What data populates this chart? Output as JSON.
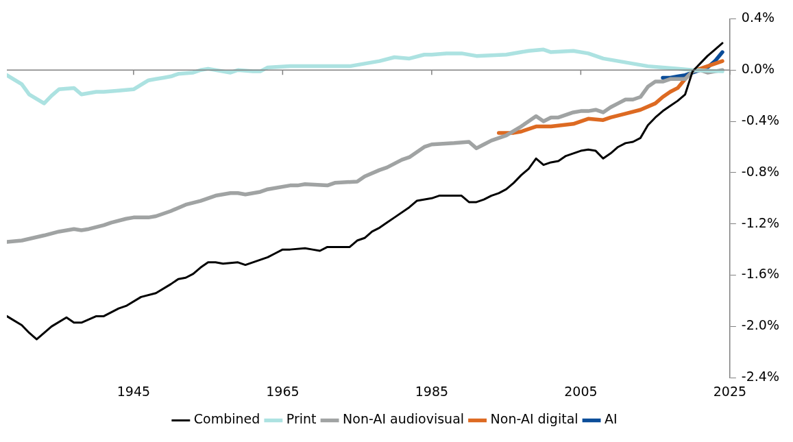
{
  "chart_data": {
    "type": "line",
    "xlim": [
      1928,
      2025
    ],
    "xticks": [
      1945,
      1965,
      1985,
      2005,
      2025
    ],
    "ylim": [
      -2.4,
      0.4
    ],
    "yticks": [
      {
        "value": 0.4,
        "label": "0.4%"
      },
      {
        "value": 0,
        "label": "0.0%"
      },
      {
        "value": -0.4,
        "label": "-0.4%"
      },
      {
        "value": -0.8,
        "label": "-0.8%"
      },
      {
        "value": -1.2,
        "label": "-1.2%"
      },
      {
        "value": -1.6,
        "label": "-1.6%"
      },
      {
        "value": -2.0,
        "label": "-2.0%"
      },
      {
        "value": -2.4,
        "label": "-2.4%"
      }
    ],
    "legend": "bottom",
    "marker": "none",
    "line_style": "solid",
    "series": [
      {
        "name": "Combined",
        "color": "#000000",
        "x": [
          1928,
          1930,
          1931,
          1932,
          1934,
          1936,
          1937,
          1938,
          1940,
          1941,
          1943,
          1944,
          1946,
          1948,
          1950,
          1951,
          1952,
          1953,
          1954,
          1955,
          1956,
          1957,
          1959,
          1960,
          1961,
          1962,
          1963,
          1964,
          1965,
          1966,
          1968,
          1969,
          1970,
          1971,
          1972,
          1973,
          1974,
          1975,
          1976,
          1977,
          1978,
          1979,
          1980,
          1982,
          1983,
          1985,
          1986,
          1987,
          1988,
          1989,
          1990,
          1991,
          1992,
          1993,
          1994,
          1995,
          1996,
          1997,
          1998,
          1999,
          2000,
          2001,
          2002,
          2003,
          2004,
          2005,
          2006,
          2007,
          2008,
          2009,
          2010,
          2011,
          2012,
          2013,
          2014,
          2015,
          2016,
          2017,
          2018,
          2019,
          2020,
          2021,
          2022,
          2023,
          2024
        ],
        "values": [
          -1.92,
          -1.99,
          -2.05,
          -2.1,
          -2.0,
          -1.93,
          -1.97,
          -1.97,
          -1.92,
          -1.92,
          -1.86,
          -1.84,
          -1.77,
          -1.74,
          -1.67,
          -1.63,
          -1.62,
          -1.59,
          -1.54,
          -1.5,
          -1.5,
          -1.51,
          -1.5,
          -1.52,
          -1.5,
          -1.48,
          -1.46,
          -1.43,
          -1.4,
          -1.4,
          -1.39,
          -1.4,
          -1.41,
          -1.38,
          -1.38,
          -1.38,
          -1.38,
          -1.33,
          -1.31,
          -1.26,
          -1.23,
          -1.19,
          -1.15,
          -1.07,
          -1.02,
          -1.0,
          -0.98,
          -0.98,
          -0.98,
          -0.98,
          -1.03,
          -1.03,
          -1.01,
          -0.98,
          -0.96,
          -0.93,
          -0.88,
          -0.82,
          -0.77,
          -0.69,
          -0.74,
          -0.72,
          -0.71,
          -0.67,
          -0.65,
          -0.63,
          -0.62,
          -0.63,
          -0.69,
          -0.65,
          -0.6,
          -0.57,
          -0.56,
          -0.53,
          -0.43,
          -0.37,
          -0.32,
          -0.28,
          -0.24,
          -0.19,
          -0.01,
          0.05,
          0.11,
          0.16,
          0.21
        ]
      },
      {
        "name": "Print",
        "color": "#ace2e1",
        "x": [
          1928,
          1930,
          1931,
          1933,
          1934,
          1935,
          1937,
          1938,
          1940,
          1941,
          1943,
          1945,
          1947,
          1948,
          1949,
          1950,
          1951,
          1953,
          1954,
          1955,
          1958,
          1959,
          1961,
          1962,
          1963,
          1966,
          1970,
          1972,
          1974,
          1976,
          1978,
          1980,
          1982,
          1984,
          1985,
          1987,
          1989,
          1991,
          1995,
          1998,
          2000,
          2001,
          2004,
          2006,
          2008,
          2010,
          2012,
          2014,
          2016,
          2018,
          2020,
          2024
        ],
        "values": [
          -0.04,
          -0.11,
          -0.19,
          -0.26,
          -0.2,
          -0.15,
          -0.14,
          -0.19,
          -0.17,
          -0.17,
          -0.16,
          -0.15,
          -0.08,
          -0.07,
          -0.06,
          -0.05,
          -0.03,
          -0.02,
          0.0,
          0.01,
          -0.02,
          0.0,
          -0.01,
          -0.01,
          0.02,
          0.03,
          0.03,
          0.03,
          0.03,
          0.05,
          0.07,
          0.1,
          0.09,
          0.12,
          0.12,
          0.13,
          0.13,
          0.11,
          0.12,
          0.15,
          0.16,
          0.14,
          0.15,
          0.13,
          0.09,
          0.07,
          0.05,
          0.03,
          0.02,
          0.01,
          0.0,
          -0.01
        ]
      },
      {
        "name": "Non-AI audiovisual",
        "color": "#a0a3a3",
        "x": [
          1928,
          1930,
          1933,
          1935,
          1937,
          1938,
          1939,
          1941,
          1942,
          1944,
          1945,
          1947,
          1948,
          1950,
          1952,
          1954,
          1956,
          1958,
          1959,
          1960,
          1962,
          1963,
          1966,
          1967,
          1968,
          1971,
          1972,
          1975,
          1976,
          1978,
          1979,
          1981,
          1982,
          1984,
          1985,
          1988,
          1990,
          1991,
          1992,
          1993,
          1995,
          1997,
          1998,
          1999,
          2000,
          2001,
          2002,
          2004,
          2005,
          2006,
          2007,
          2008,
          2009,
          2010,
          2011,
          2012,
          2013,
          2014,
          2015,
          2016,
          2017,
          2019,
          2020,
          2021,
          2022,
          2023,
          2024
        ],
        "values": [
          -1.34,
          -1.33,
          -1.29,
          -1.26,
          -1.24,
          -1.25,
          -1.24,
          -1.21,
          -1.19,
          -1.16,
          -1.15,
          -1.15,
          -1.14,
          -1.1,
          -1.05,
          -1.02,
          -0.98,
          -0.96,
          -0.96,
          -0.97,
          -0.95,
          -0.93,
          -0.9,
          -0.9,
          -0.89,
          -0.9,
          -0.88,
          -0.87,
          -0.83,
          -0.78,
          -0.76,
          -0.7,
          -0.68,
          -0.6,
          -0.58,
          -0.57,
          -0.56,
          -0.61,
          -0.58,
          -0.55,
          -0.51,
          -0.44,
          -0.4,
          -0.36,
          -0.4,
          -0.37,
          -0.37,
          -0.33,
          -0.32,
          -0.32,
          -0.31,
          -0.33,
          -0.29,
          -0.26,
          -0.23,
          -0.23,
          -0.21,
          -0.13,
          -0.09,
          -0.09,
          -0.07,
          -0.07,
          -0.01,
          0.0,
          -0.02,
          -0.01,
          0.0
        ]
      },
      {
        "name": "Non-AI digital",
        "color": "#dd6a22",
        "x": [
          1994,
          1996,
          1997,
          1999,
          2001,
          2004,
          2006,
          2008,
          2009,
          2011,
          2013,
          2015,
          2016,
          2017,
          2018,
          2019,
          2020,
          2021,
          2022,
          2023,
          2024
        ],
        "values": [
          -0.49,
          -0.49,
          -0.48,
          -0.44,
          -0.44,
          -0.42,
          -0.38,
          -0.39,
          -0.37,
          -0.34,
          -0.31,
          -0.26,
          -0.21,
          -0.17,
          -0.14,
          -0.07,
          -0.01,
          0.01,
          0.03,
          0.05,
          0.07
        ]
      },
      {
        "name": "AI",
        "color": "#0b4d99",
        "x": [
          2016,
          2017,
          2018,
          2019,
          2020,
          2021,
          2022,
          2023,
          2024
        ],
        "values": [
          -0.06,
          -0.06,
          -0.05,
          -0.04,
          -0.02,
          0.0,
          0.02,
          0.07,
          0.14
        ]
      }
    ]
  }
}
